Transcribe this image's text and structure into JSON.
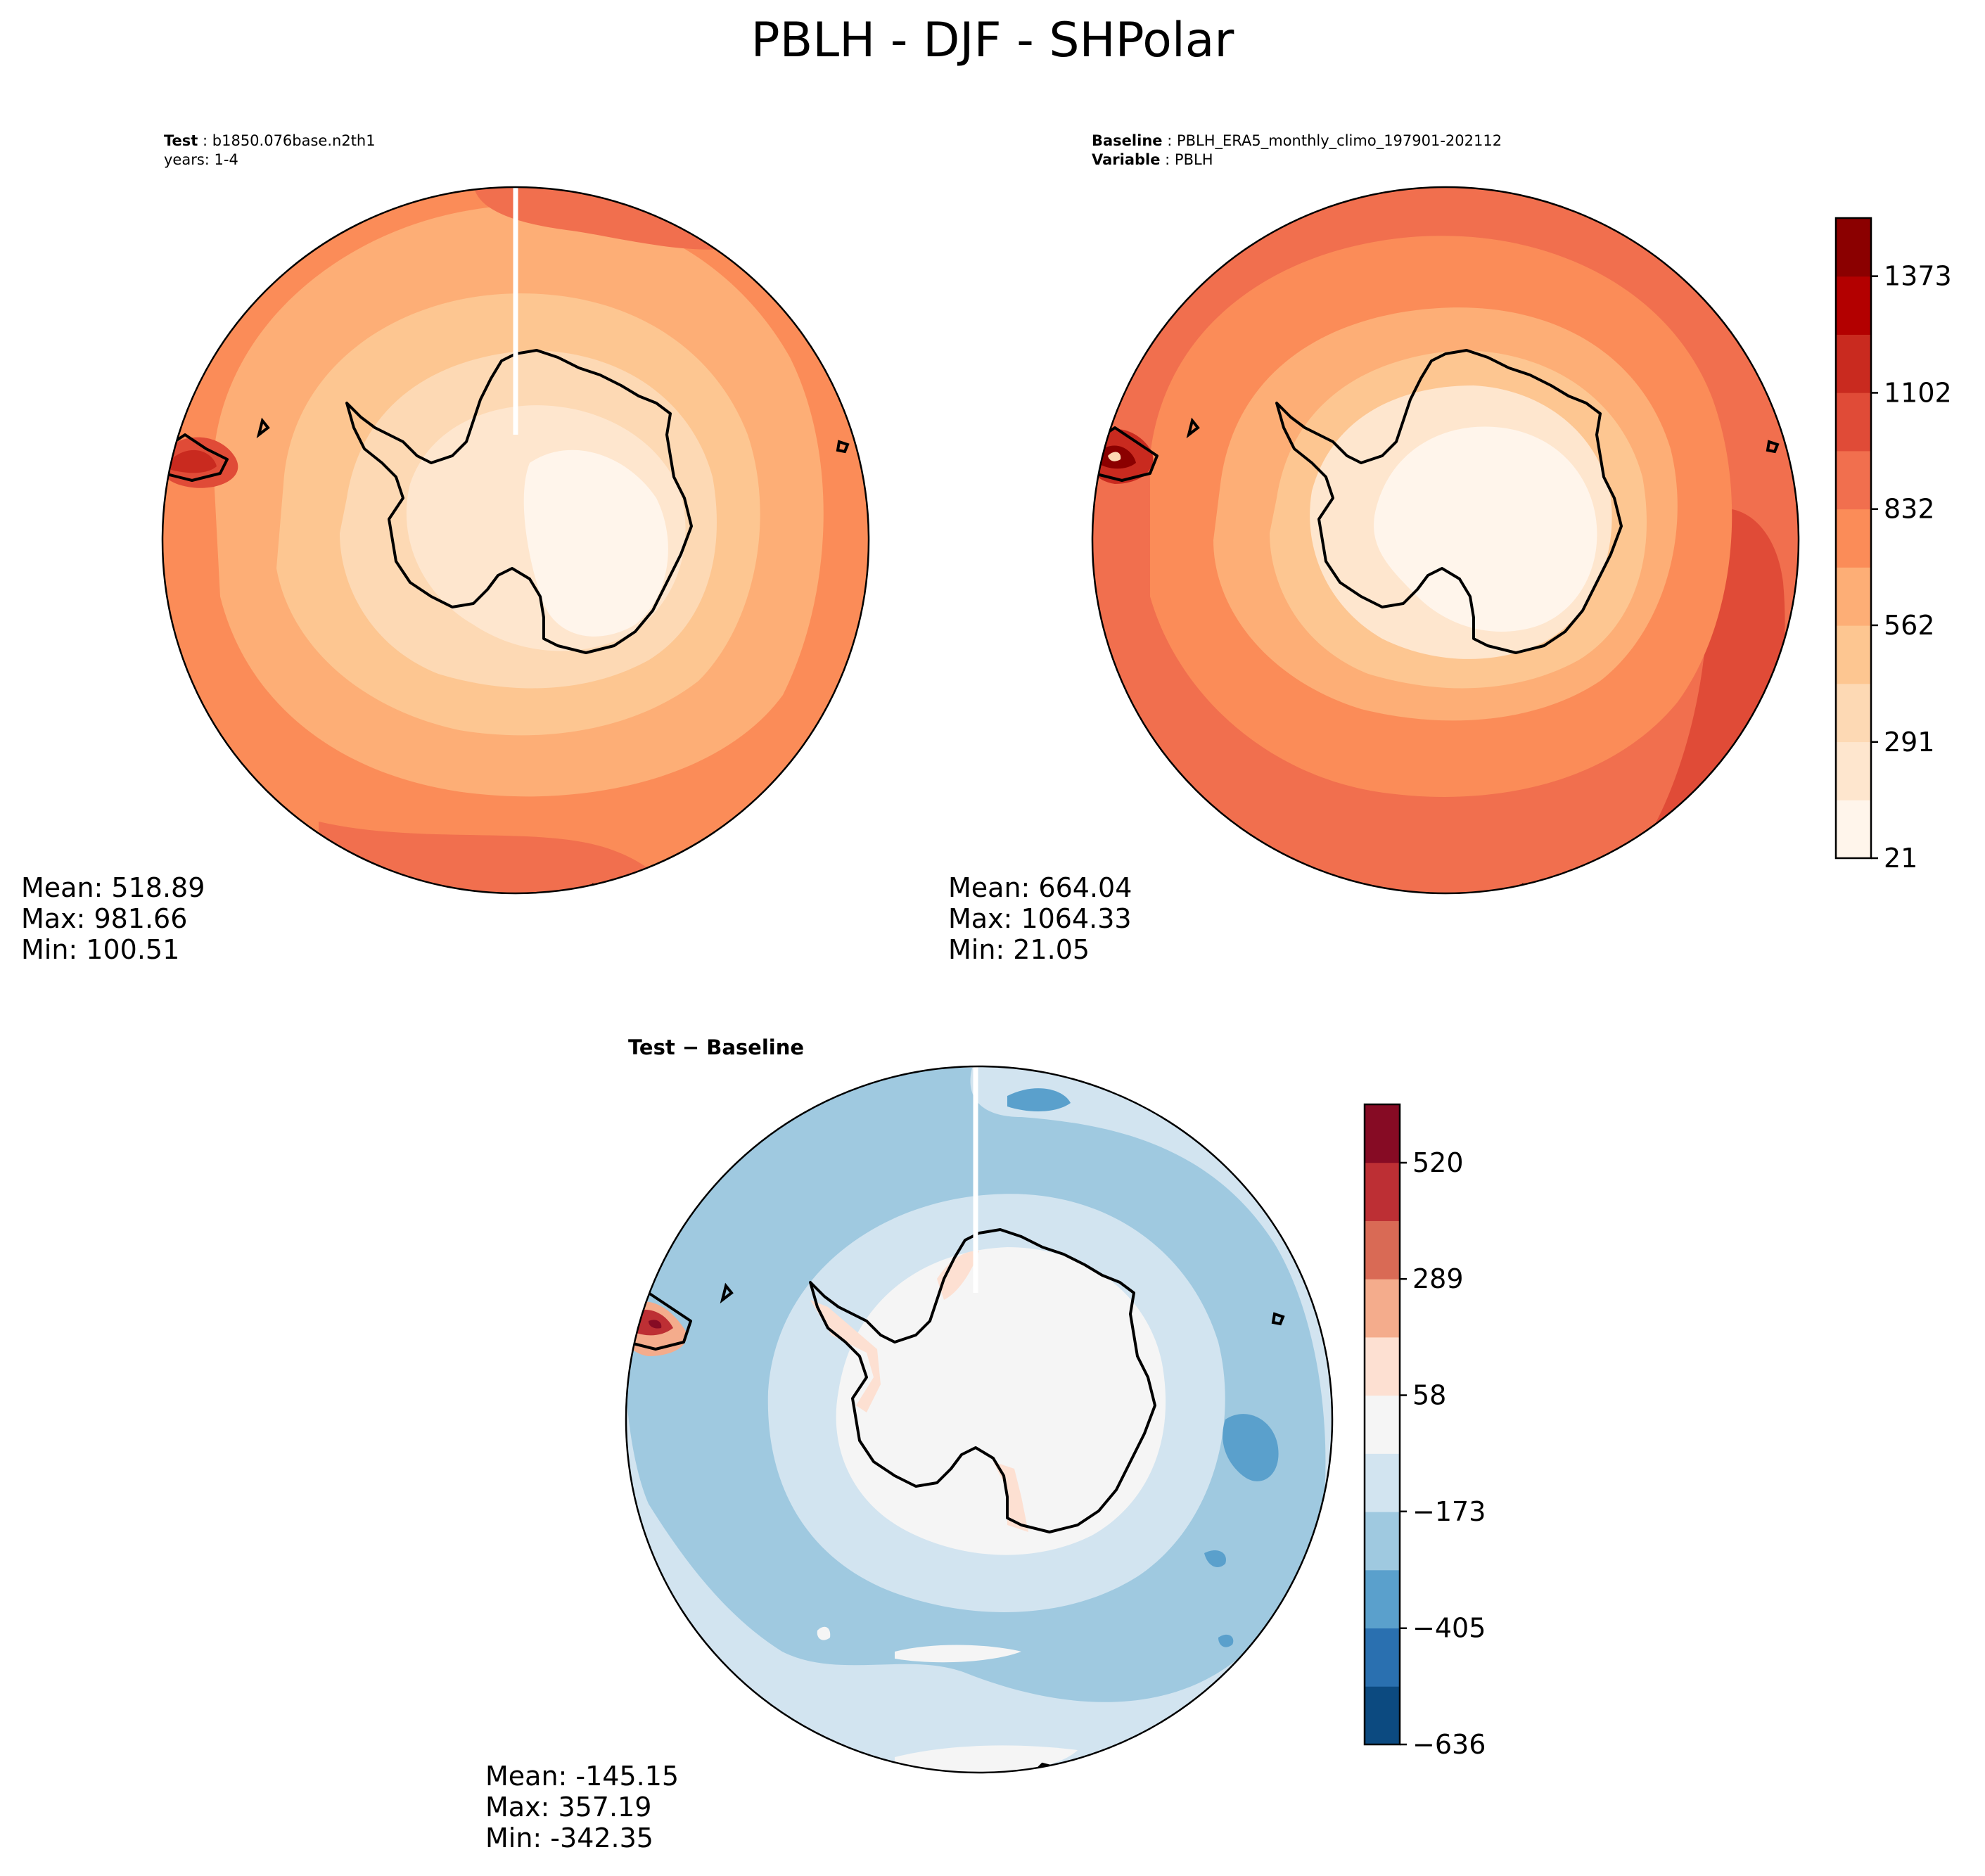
{
  "figure": {
    "title": "PBLH - DJF - SHPolar"
  },
  "panels": {
    "test": {
      "header_label": "Test",
      "header_value": "b1850.076base.n2th1",
      "years_label": "years: 1-4",
      "stats": {
        "mean": "Mean: 518.89",
        "max": "Max: 981.66",
        "min": "Min: 100.51"
      }
    },
    "baseline": {
      "header_label": "Baseline",
      "header_value": "PBLH_ERA5_monthly_climo_197901-202112",
      "variable_label": "Variable",
      "variable_value": "PBLH",
      "stats": {
        "mean": "Mean: 664.04",
        "max": "Max: 1064.33",
        "min": "Min: 21.05"
      }
    },
    "diff": {
      "title": "Test − Baseline",
      "stats": {
        "mean": "Mean: -145.15",
        "max": "Max: 357.19",
        "min": "Min: -342.35"
      }
    }
  },
  "chart_data": [
    {
      "type": "heatmap",
      "title": "Test: b1850.076base.n2th1 (years: 1-4)",
      "variable": "PBLH",
      "season": "DJF",
      "projection": "south-polar-stereographic",
      "stats": {
        "mean": 518.89,
        "max": 981.66,
        "min": 100.51
      },
      "colormap": "OrRd-like",
      "colorbar": "shared with Baseline"
    },
    {
      "type": "heatmap",
      "title": "Baseline: PBLH_ERA5_monthly_climo_197901-202112",
      "variable": "PBLH",
      "season": "DJF",
      "projection": "south-polar-stereographic",
      "stats": {
        "mean": 664.04,
        "max": 1064.33,
        "min": 21.05
      },
      "colorbar": {
        "range": [
          21,
          1508
        ],
        "tick_labels": [
          "21",
          "291",
          "562",
          "832",
          "1102",
          "1373"
        ],
        "tick_values": [
          21,
          291,
          562,
          832,
          1102,
          1373
        ],
        "levels": 11,
        "colors": [
          "#fff5eb",
          "#fee6ce",
          "#fdd9b4",
          "#fdc691",
          "#fdae76",
          "#fb8c58",
          "#f16f4e",
          "#e04b37",
          "#c92a1f",
          "#b30000",
          "#8b0000"
        ]
      }
    },
    {
      "type": "heatmap",
      "title": "Test − Baseline",
      "variable": "PBLH",
      "season": "DJF",
      "projection": "south-polar-stereographic",
      "stats": {
        "mean": -145.15,
        "max": 357.19,
        "min": -342.35
      },
      "colorbar": {
        "range": [
          -636,
          636
        ],
        "tick_labels": [
          "−636",
          "−405",
          "−173",
          "58",
          "289",
          "520"
        ],
        "tick_values": [
          -636,
          -405,
          -173,
          58,
          289,
          520
        ],
        "levels": 11,
        "colors": [
          "#0c4a80",
          "#2a70b0",
          "#5aa0cc",
          "#9fc9e0",
          "#d2e4f0",
          "#f5f5f5",
          "#fde0d2",
          "#f4ac8c",
          "#d96a55",
          "#bd2f34",
          "#860b24"
        ]
      }
    }
  ]
}
